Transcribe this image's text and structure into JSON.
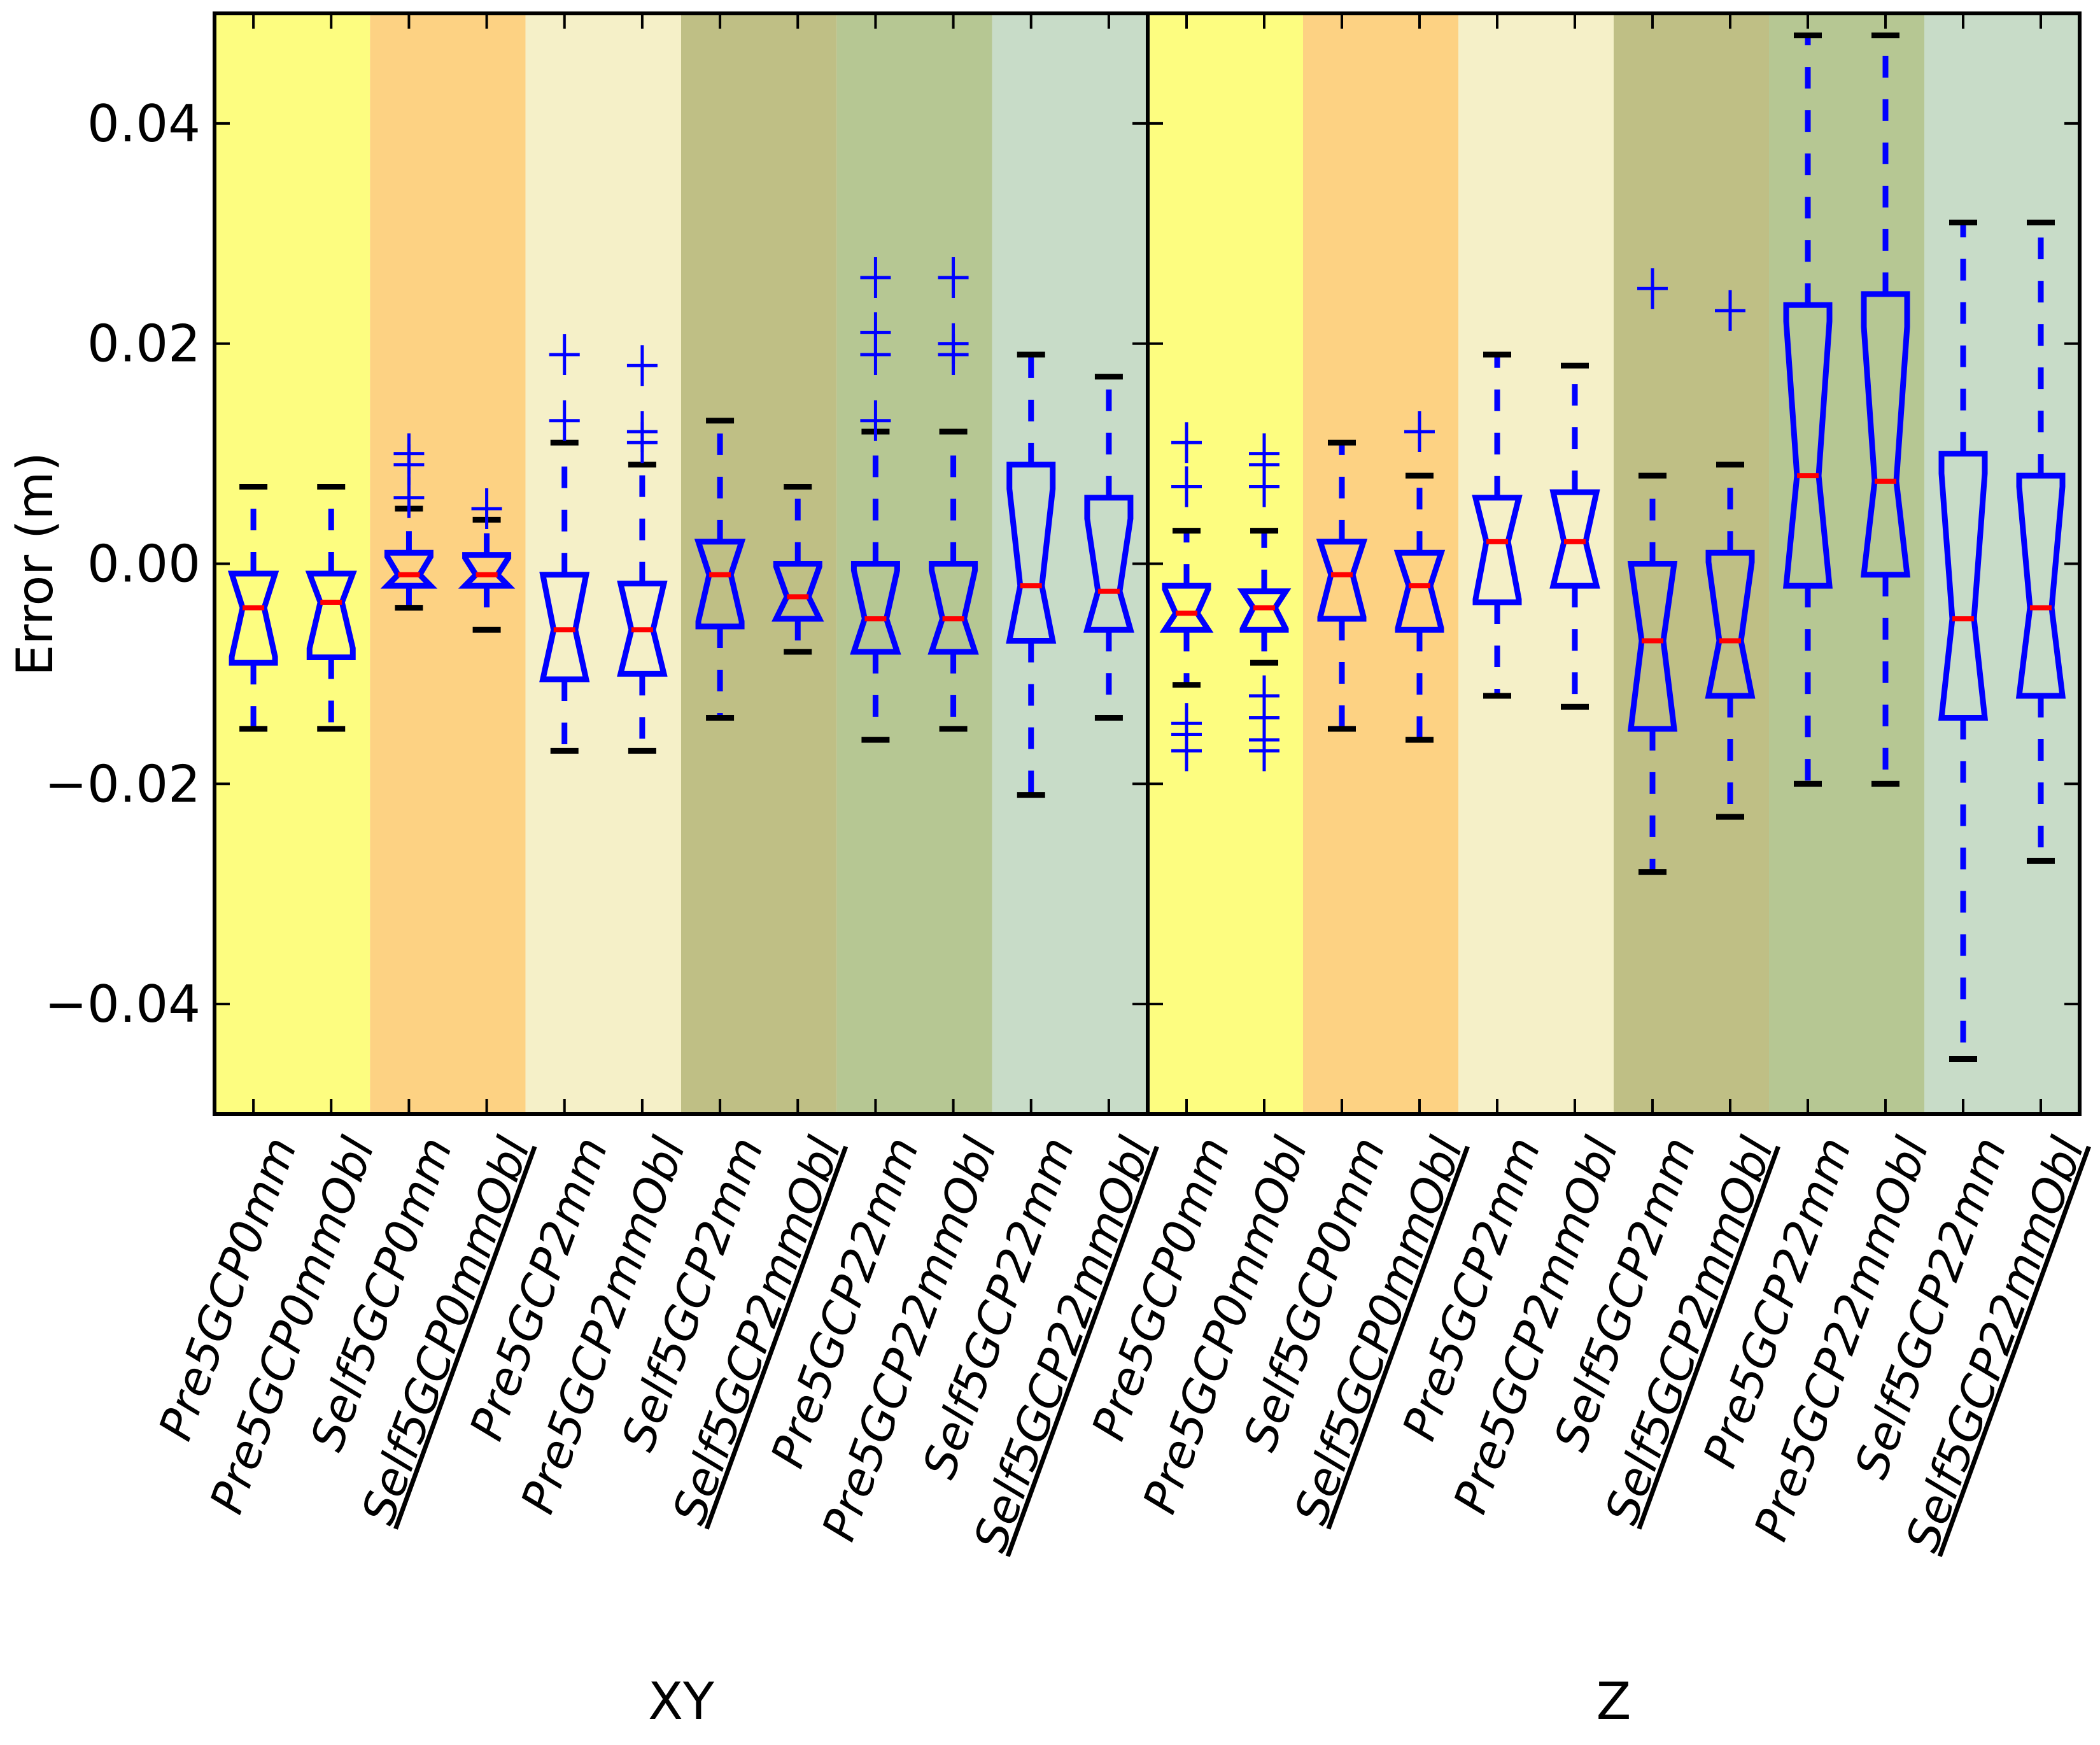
{
  "chart_data": {
    "type": "boxplot",
    "title": "",
    "ylabel": "Error (m)",
    "ylim": [
      -0.05,
      0.05
    ],
    "yticks": [
      -0.04,
      -0.02,
      0.0,
      0.02,
      0.04
    ],
    "ytick_labels": [
      "−0.04",
      "−0.02",
      "0.00",
      "0.02",
      "0.04"
    ],
    "notched": true,
    "colors": {
      "box": "#0000ff",
      "median": "#ff0000",
      "cap": "#000000",
      "bands": [
        "#fdfd80",
        "#fdd283",
        "#f5f0c8",
        "#bfbf85",
        "#b6c793",
        "#c8dcc8"
      ]
    },
    "panels": [
      {
        "label": "XY",
        "categories": [
          "Pre5GCP0mm",
          "Pre5GCP0mmObl",
          "Self5GCP0mm",
          "Self5GCP0mmObl",
          "Pre5GCP2mm",
          "Pre5GCP2mmObl",
          "Self5GCP2mm",
          "Self5GCP2mmObl",
          "Pre5GCP22mm",
          "Pre5GCP22mmObl",
          "Self5GCP22mm",
          "Self5GCP22mmObl"
        ],
        "underlined": [
          false,
          false,
          false,
          true,
          false,
          false,
          false,
          true,
          false,
          false,
          false,
          true
        ],
        "boxes": [
          {
            "whislo": -0.015,
            "q1": -0.009,
            "med": -0.004,
            "q3": -0.0009,
            "whishi": 0.007,
            "fliers": []
          },
          {
            "whislo": -0.015,
            "q1": -0.0085,
            "med": -0.0035,
            "q3": -0.0009,
            "whishi": 0.007,
            "fliers": []
          },
          {
            "whislo": -0.004,
            "q1": -0.002,
            "med": -0.001,
            "q3": 0.001,
            "whishi": 0.005,
            "fliers": [
              0.01,
              0.009,
              0.006
            ]
          },
          {
            "whislo": -0.006,
            "q1": -0.002,
            "med": -0.001,
            "q3": 0.0008,
            "whishi": 0.004,
            "fliers": [
              0.005
            ]
          },
          {
            "whislo": -0.017,
            "q1": -0.0105,
            "med": -0.006,
            "q3": -0.001,
            "whishi": 0.011,
            "fliers": [
              0.019,
              0.013
            ]
          },
          {
            "whislo": -0.017,
            "q1": -0.01,
            "med": -0.006,
            "q3": -0.0018,
            "whishi": 0.009,
            "fliers": [
              0.018,
              0.012,
              0.011
            ]
          },
          {
            "whislo": -0.014,
            "q1": -0.0057,
            "med": -0.001,
            "q3": 0.002,
            "whishi": 0.013,
            "fliers": []
          },
          {
            "whislo": -0.008,
            "q1": -0.005,
            "med": -0.003,
            "q3": 0.0,
            "whishi": 0.007,
            "fliers": []
          },
          {
            "whislo": -0.016,
            "q1": -0.008,
            "med": -0.005,
            "q3": 0.0,
            "whishi": 0.012,
            "fliers": [
              0.026,
              0.021,
              0.019,
              0.013
            ]
          },
          {
            "whislo": -0.015,
            "q1": -0.008,
            "med": -0.005,
            "q3": 0.0,
            "whishi": 0.012,
            "fliers": [
              0.026,
              0.02,
              0.019
            ]
          },
          {
            "whislo": -0.021,
            "q1": -0.007,
            "med": -0.002,
            "q3": 0.009,
            "whishi": 0.019,
            "fliers": []
          },
          {
            "whislo": -0.014,
            "q1": -0.006,
            "med": -0.0025,
            "q3": 0.006,
            "whishi": 0.017,
            "fliers": []
          }
        ]
      },
      {
        "label": "Z",
        "categories": [
          "Pre5GCP0mm",
          "Pre5GCP0mmObl",
          "Self5GCP0mm",
          "Self5GCP0mmObl",
          "Pre5GCP2mm",
          "Pre5GCP2mmObl",
          "Self5GCP2mm",
          "Self5GCP2mmObl",
          "Pre5GCP22mm",
          "Pre5GCP22mmObl",
          "Self5GCP22mm",
          "Self5GCP22mmObl"
        ],
        "underlined": [
          false,
          false,
          false,
          true,
          false,
          false,
          false,
          true,
          false,
          false,
          false,
          true
        ],
        "boxes": [
          {
            "whislo": -0.011,
            "q1": -0.006,
            "med": -0.0045,
            "q3": -0.002,
            "whishi": 0.003,
            "fliers": [
              0.011,
              0.007,
              -0.0145,
              -0.0155,
              -0.017
            ]
          },
          {
            "whislo": -0.009,
            "q1": -0.006,
            "med": -0.004,
            "q3": -0.0025,
            "whishi": 0.003,
            "fliers": [
              0.01,
              0.009,
              0.007,
              -0.012,
              -0.014,
              -0.016,
              -0.017
            ]
          },
          {
            "whislo": -0.015,
            "q1": -0.005,
            "med": -0.001,
            "q3": 0.002,
            "whishi": 0.011,
            "fliers": []
          },
          {
            "whislo": -0.016,
            "q1": -0.006,
            "med": -0.002,
            "q3": 0.001,
            "whishi": 0.008,
            "fliers": [
              0.012
            ]
          },
          {
            "whislo": -0.012,
            "q1": -0.0035,
            "med": 0.002,
            "q3": 0.006,
            "whishi": 0.019,
            "fliers": []
          },
          {
            "whislo": -0.013,
            "q1": -0.002,
            "med": 0.002,
            "q3": 0.0065,
            "whishi": 0.018,
            "fliers": []
          },
          {
            "whislo": -0.028,
            "q1": -0.015,
            "med": -0.007,
            "q3": 0.0,
            "whishi": 0.008,
            "fliers": [
              0.025
            ]
          },
          {
            "whislo": -0.023,
            "q1": -0.012,
            "med": -0.007,
            "q3": 0.001,
            "whishi": 0.009,
            "fliers": [
              0.023
            ]
          },
          {
            "whislo": -0.02,
            "q1": -0.002,
            "med": 0.008,
            "q3": 0.0235,
            "whishi": 0.048,
            "fliers": []
          },
          {
            "whislo": -0.02,
            "q1": -0.001,
            "med": 0.0075,
            "q3": 0.0245,
            "whishi": 0.048,
            "fliers": []
          },
          {
            "whislo": -0.045,
            "q1": -0.014,
            "med": -0.005,
            "q3": 0.01,
            "whishi": 0.031,
            "fliers": []
          },
          {
            "whislo": -0.027,
            "q1": -0.012,
            "med": -0.004,
            "q3": 0.008,
            "whishi": 0.031,
            "fliers": []
          }
        ]
      }
    ]
  }
}
